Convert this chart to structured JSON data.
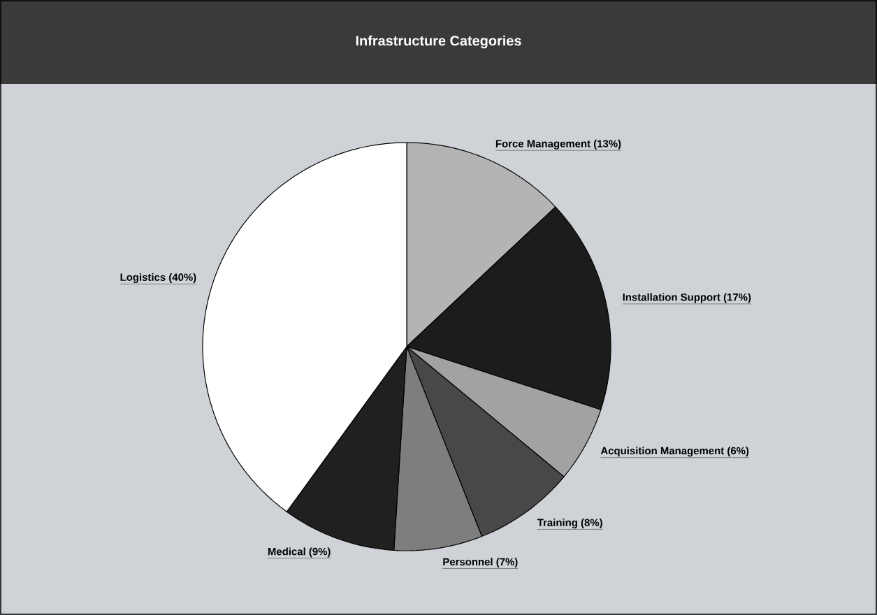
{
  "chart_data": {
    "type": "pie",
    "title": "Infrastructure Categories",
    "categories": [
      "Force Management (13%)",
      "Installation Support (17%)",
      "Acquisition Management (6%)",
      "Training (8%)",
      "Personnel (7%)",
      "Medical (9%)",
      "Logistics (40%)"
    ],
    "values": [
      13,
      17,
      6,
      8,
      7,
      9,
      40
    ],
    "colors": [
      "#b4b4b4",
      "#1c1c1c",
      "#a2a2a2",
      "#484848",
      "#7e7e7e",
      "#202020",
      "#ffffff"
    ]
  }
}
